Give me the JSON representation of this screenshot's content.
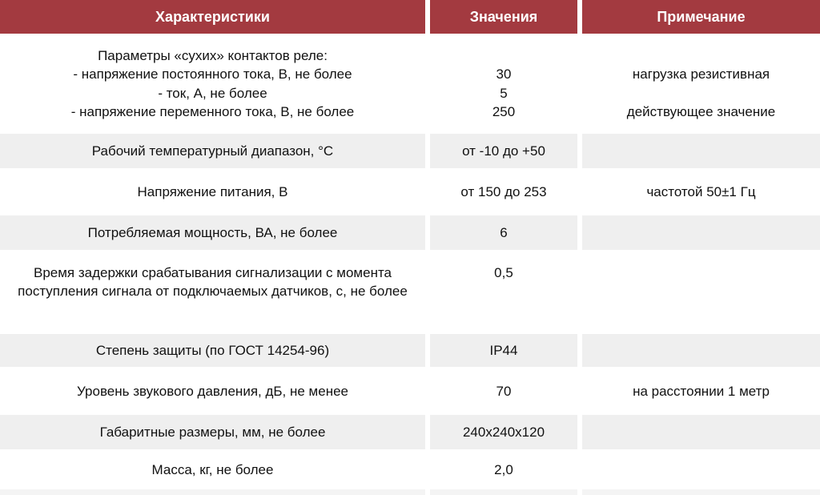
{
  "colors": {
    "header_bg": "#a33a40",
    "header_text": "#ffffff",
    "row_bg": "#ffffff",
    "row_alt_bg": "#efefef",
    "strip_bg": "#f4f4f4",
    "text": "#111111"
  },
  "table": {
    "header": {
      "characteristics": "Характеристики",
      "values": "Значения",
      "note": "Примечание"
    },
    "rows": [
      {
        "char_lines": [
          "Параметры «сухих» контактов реле:",
          "- напряжение постоянного тока, В, не более",
          "- ток, А, не более",
          "- напряжение переменного тока, В, не более"
        ],
        "value_lines": [
          "",
          "30",
          "5",
          "250"
        ],
        "note_lines": [
          "",
          "нагрузка резистивная",
          "",
          "действующее значение"
        ]
      },
      {
        "char": "Рабочий температурный диапазон, °С",
        "value": "от -10 до +50",
        "note": ""
      },
      {
        "char": "Напряжение питания, В",
        "value": "от 150 до 253",
        "note": "частотой 50±1 Гц"
      },
      {
        "char": "Потребляемая мощность, ВА, не более",
        "value": "6",
        "note": ""
      },
      {
        "char": "Время задержки срабатывания сигнализации с момента поступления сигнала от подключаемых датчиков, с, не более",
        "value": "0,5",
        "note": ""
      },
      {
        "char": "Степень защиты (по ГОСТ 14254-96)",
        "value": "IP44",
        "note": ""
      },
      {
        "char": "Уровень звукового давления, дБ, не менее",
        "value": "70",
        "note": "на расстоянии 1 метр"
      },
      {
        "char": "Габаритные размеры, мм, не более",
        "value": "240x240x120",
        "note": ""
      },
      {
        "char": "Масса, кг, не более",
        "value": "2,0",
        "note": ""
      }
    ]
  }
}
